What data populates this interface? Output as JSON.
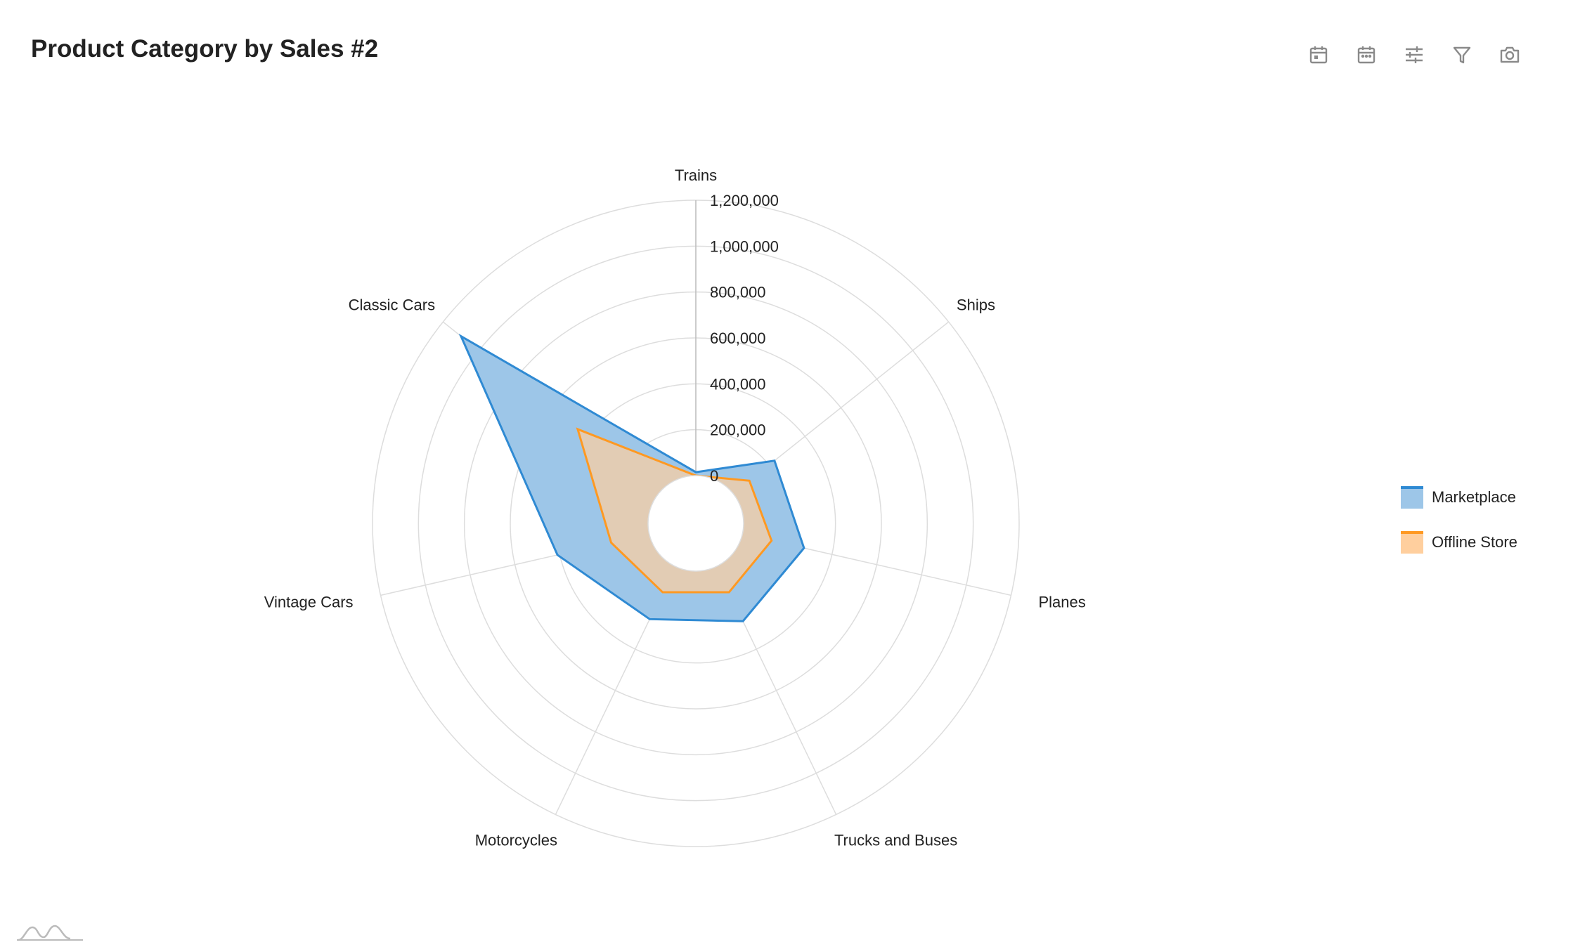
{
  "title": "Product Category by Sales #2",
  "toolbar": {
    "icons": [
      "calendar-day-icon",
      "calendar-icon",
      "sliders-icon",
      "filter-icon",
      "camera-icon"
    ]
  },
  "chart_data": {
    "type": "radar",
    "title": "Product Category by Sales #2",
    "categories": [
      "Trains",
      "Ships",
      "Planes",
      "Trucks and Buses",
      "Motorcycles",
      "Vintage Cars",
      "Classic Cars"
    ],
    "series": [
      {
        "name": "Marketplace",
        "color": "#2f8ad3",
        "fill": "#9dc6e8",
        "values": [
          15000,
          230000,
          275000,
          265000,
          255000,
          410000,
          1100000
        ]
      },
      {
        "name": "Offline Store",
        "color": "#ff9922",
        "fill": "#ffcf9e",
        "values": [
          0,
          90000,
          130000,
          125000,
          125000,
          170000,
          450000
        ]
      }
    ],
    "radial_ticks": [
      "0",
      "200,000",
      "400,000",
      "600,000",
      "800,000",
      "1,000,000",
      "1,200,000"
    ],
    "range": [
      0,
      1200000
    ],
    "grid": true,
    "legend_position": "right"
  },
  "legend": {
    "items": [
      {
        "label": "Marketplace"
      },
      {
        "label": "Offline Store"
      }
    ]
  }
}
